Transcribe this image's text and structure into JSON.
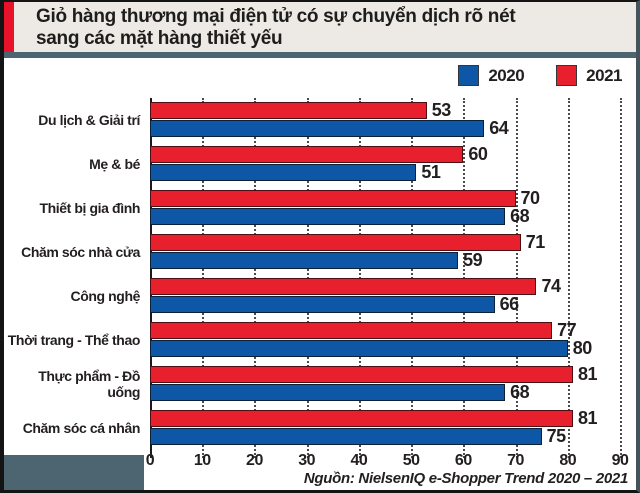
{
  "header": {
    "title_line1": "Giỏ hàng thương mại điện tử có sự chuyển dịch rõ nét",
    "title_line2": "sang các mặt hàng thiết yếu"
  },
  "legend": {
    "items": [
      {
        "label": "2020",
        "color": "#0d57a6"
      },
      {
        "label": "2021",
        "color": "#e81f2d"
      }
    ]
  },
  "chart_data": {
    "type": "bar",
    "orientation": "horizontal",
    "title": "Giỏ hàng thương mại điện tử có sự chuyển dịch rõ nét sang các mặt hàng thiết yếu",
    "categories": [
      "Du lịch & Giải trí",
      "Mẹ & bé",
      "Thiết bị gia đình",
      "Chăm sóc nhà cửa",
      "Công nghệ",
      "Thời trang - Thể thao",
      "Thực phẩm - Đồ uống",
      "Chăm sóc cá nhân"
    ],
    "series": [
      {
        "name": "2021",
        "color": "#e81f2d",
        "values": [
          53,
          60,
          70,
          71,
          74,
          77,
          81,
          81
        ]
      },
      {
        "name": "2020",
        "color": "#0d57a6",
        "values": [
          64,
          51,
          68,
          59,
          66,
          80,
          68,
          75
        ]
      }
    ],
    "x_ticks": [
      0,
      10,
      20,
      30,
      40,
      50,
      60,
      70,
      80,
      90
    ],
    "xlim": [
      0,
      90
    ],
    "grid": "vertical-dotted",
    "legend_position": "top-right",
    "bar_order": "2021 (red) on top of 2020 (blue) within each category group"
  },
  "footer": {
    "source": "Nguồn: NielsenIQ e-Shopper Trend 2020 – 2021"
  },
  "colors": {
    "red_2021": "#e81f2d",
    "blue_2020": "#0d57a6",
    "header_background": "#edeae6",
    "accent_bar": "#e8132b",
    "divider_slate": "#4d6570",
    "text": "#231f20",
    "frame_border": "#141414"
  }
}
